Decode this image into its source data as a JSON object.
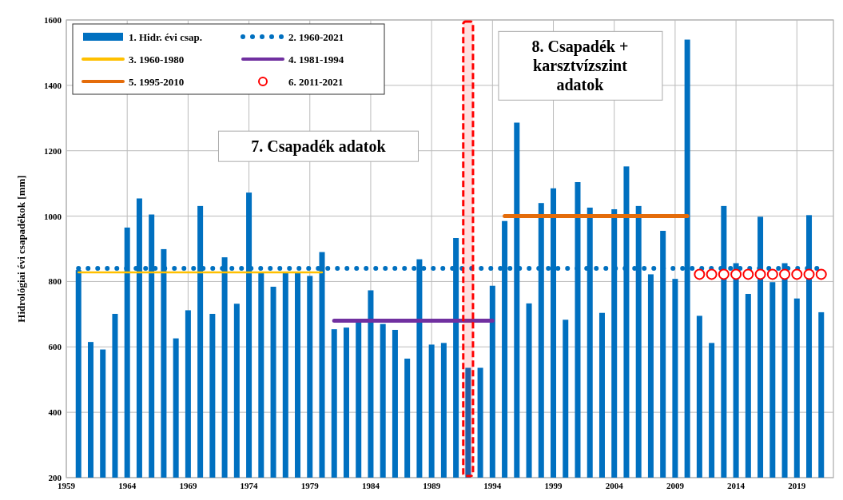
{
  "chart_data": {
    "type": "bar",
    "ylabel": "Hidrológiai  évi csapadékok [mm]",
    "xlim": [
      1959,
      2022
    ],
    "xticks": [
      1959,
      1964,
      1969,
      1974,
      1979,
      1984,
      1989,
      1994,
      1999,
      2004,
      2009,
      2014,
      2019
    ],
    "ylim": [
      200,
      1600
    ],
    "yticks": [
      200,
      400,
      600,
      800,
      1000,
      1200,
      1400,
      1600
    ],
    "grid": true,
    "legend": "top left",
    "series": [
      {
        "name": "1. Hidr. évi csap.",
        "color": "#0070c0",
        "x": [
          1960,
          1961,
          1962,
          1963,
          1964,
          1965,
          1966,
          1967,
          1968,
          1969,
          1970,
          1971,
          1972,
          1973,
          1974,
          1975,
          1976,
          1977,
          1978,
          1979,
          1980,
          1981,
          1982,
          1983,
          1984,
          1985,
          1986,
          1987,
          1988,
          1989,
          1990,
          1991,
          1992,
          1993,
          1994,
          1995,
          1996,
          1997,
          1998,
          1999,
          2000,
          2001,
          2002,
          2003,
          2004,
          2005,
          2006,
          2007,
          2008,
          2009,
          2010,
          2011,
          2012,
          2013,
          2014,
          2015,
          2016,
          2017,
          2018,
          2019,
          2020,
          2021
        ],
        "values": [
          835,
          615,
          592,
          701,
          965,
          1054,
          1005,
          899,
          626,
          712,
          1031,
          701,
          874,
          732,
          1072,
          830,
          784,
          830,
          830,
          817,
          890,
          654,
          659,
          682,
          773,
          670,
          652,
          564,
          868,
          607,
          612,
          933,
          536,
          536,
          787,
          985,
          1286,
          733,
          1040,
          1085,
          683,
          1104,
          1026,
          704,
          1021,
          1152,
          1031,
          822,
          955,
          808,
          1540,
          695,
          612,
          1031,
          856,
          762,
          998,
          798,
          856,
          748,
          1003,
          706
        ]
      },
      {
        "name": "2. 1960-2021",
        "type": "line",
        "line_style": "dotted",
        "color": "#0070c0",
        "x": [
          1960,
          2021
        ],
        "values": [
          840,
          840
        ]
      },
      {
        "name": "3. 1960-1980",
        "type": "line",
        "line_style": "solid",
        "color": "#ffc000",
        "x": [
          1960,
          1980
        ],
        "values": [
          828,
          828
        ]
      },
      {
        "name": "4. 1981-1994",
        "type": "line",
        "line_style": "solid",
        "color": "#7030a0",
        "x": [
          1981,
          1994
        ],
        "values": [
          680,
          680
        ]
      },
      {
        "name": "5. 1995-2010",
        "type": "line",
        "line_style": "solid",
        "color": "#e46c0a",
        "x": [
          1995,
          2010
        ],
        "values": [
          1000,
          1000
        ]
      },
      {
        "name": "6. 2011-2021",
        "type": "scatter",
        "marker": "circle",
        "color": "#ff0000",
        "x": [
          2011,
          2012,
          2013,
          2014,
          2015,
          2016,
          2017,
          2018,
          2019,
          2020,
          2021
        ],
        "values": [
          822,
          822,
          822,
          822,
          822,
          822,
          822,
          822,
          822,
          822,
          822
        ]
      }
    ],
    "bands": [
      {
        "axis": "x",
        "from": 1991.6,
        "to": 1992.4,
        "color": "#ff0000"
      }
    ],
    "annotations": [
      "7. Csapadék adatok",
      "8. Csapadék +\nkarsztvízszint\nadatok"
    ]
  }
}
